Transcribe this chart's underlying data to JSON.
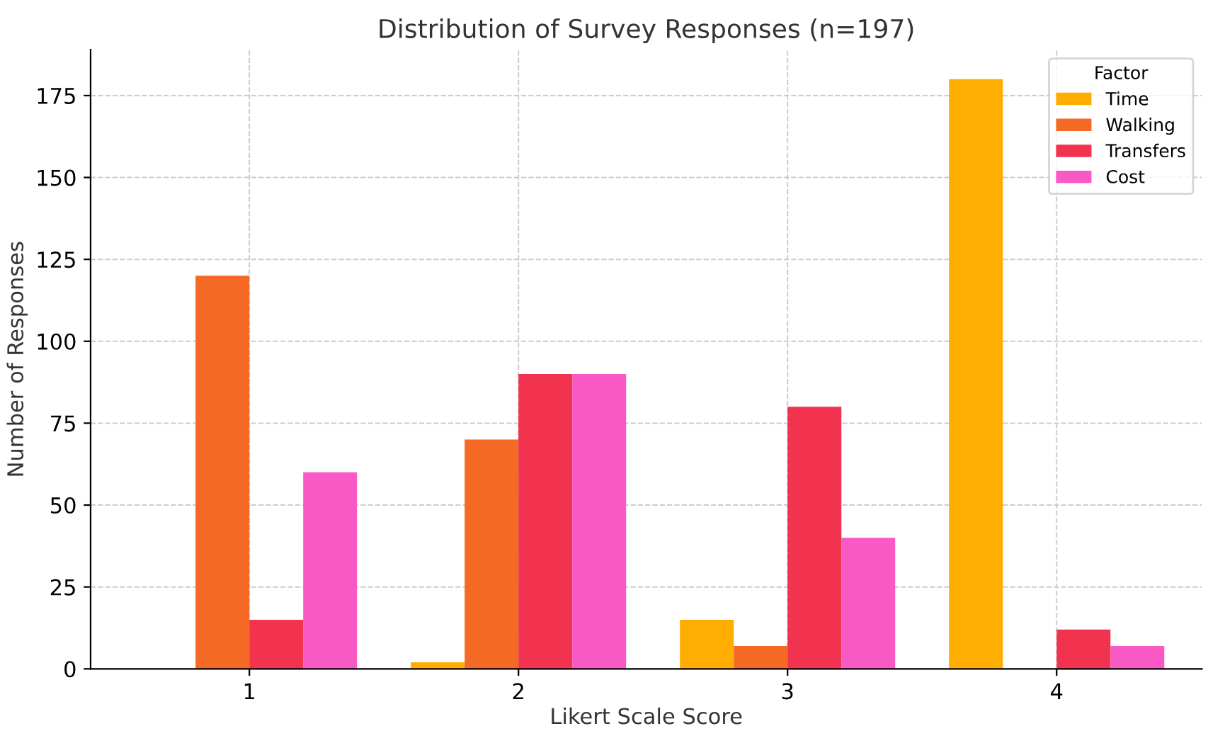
{
  "chart_data": {
    "type": "bar",
    "title": "Distribution of Survey Responses (n=197)",
    "xlabel": "Likert Scale Score",
    "ylabel": "Number of Responses",
    "legend_title": "Factor",
    "categories": [
      "1",
      "2",
      "3",
      "4"
    ],
    "series": [
      {
        "name": "Time",
        "color": "#ffad00",
        "values": [
          0,
          2,
          15,
          180
        ]
      },
      {
        "name": "Walking",
        "color": "#f46a25",
        "values": [
          120,
          70,
          7,
          0
        ]
      },
      {
        "name": "Transfers",
        "color": "#f2334f",
        "values": [
          15,
          90,
          80,
          12
        ]
      },
      {
        "name": "Cost",
        "color": "#f859c4",
        "values": [
          60,
          90,
          40,
          7
        ]
      }
    ],
    "ylim": [
      0,
      189
    ],
    "yticks": [
      0,
      25,
      50,
      75,
      100,
      125,
      150,
      175
    ],
    "grid": true,
    "legend": "top right"
  }
}
